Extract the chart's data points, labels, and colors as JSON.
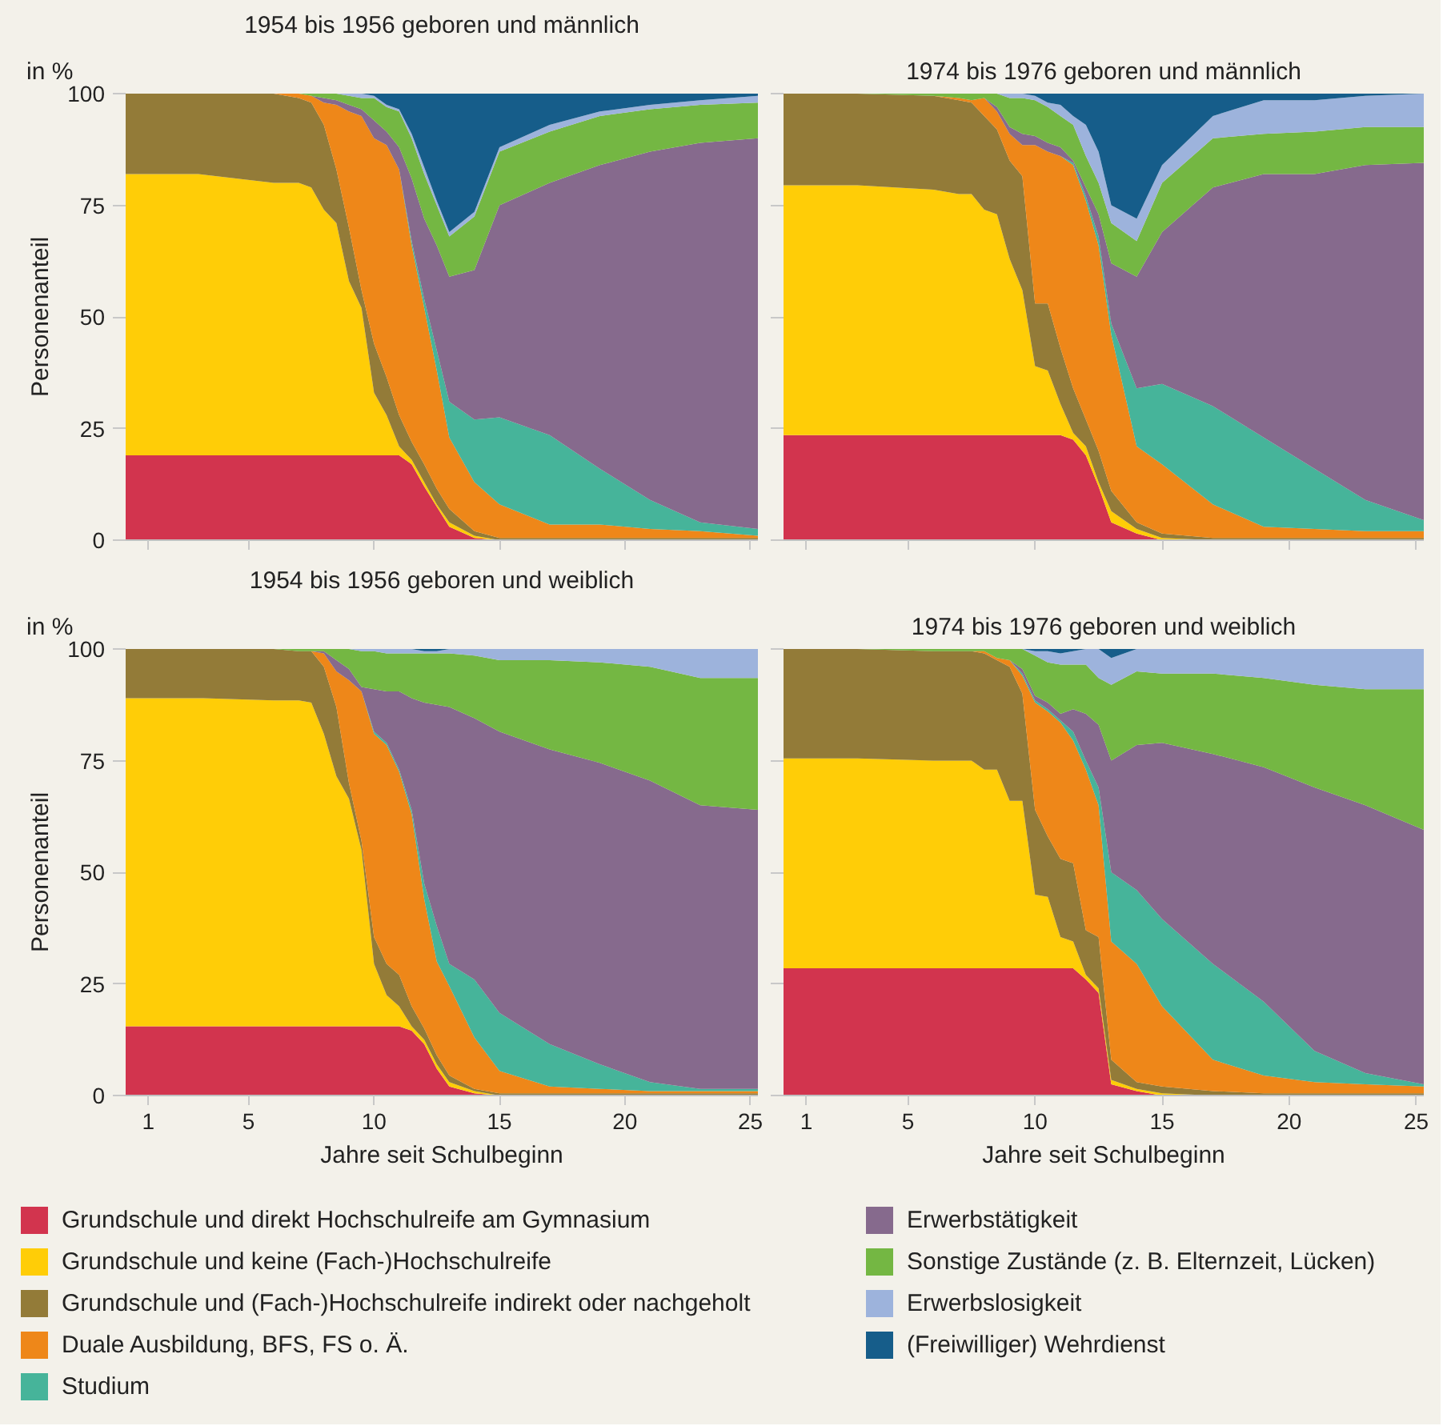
{
  "chart_data": [
    {
      "type": "area",
      "stacked": true,
      "title": "1954 bis 1956 geboren und männlich",
      "ylabel": "Personenanteil",
      "annotations": [
        "in %"
      ],
      "xlim": [
        0.1,
        25.3
      ],
      "ylim": [
        0,
        100
      ],
      "xticks": [
        1,
        5,
        10,
        15,
        20,
        25
      ],
      "yticks": [
        0,
        25,
        50,
        75,
        100
      ],
      "grid": "y",
      "tick_labels": "y",
      "x": [
        0.1,
        3,
        6,
        7,
        7.5,
        8,
        8.5,
        9,
        9.5,
        10,
        10.5,
        11,
        11.5,
        12,
        12.5,
        13,
        14,
        15,
        17,
        19,
        21,
        23,
        25.3
      ],
      "series": [
        {
          "color": "#d2344e",
          "values": [
            19,
            19,
            19,
            19,
            19,
            19,
            19,
            19,
            19,
            19,
            19,
            19,
            17,
            12,
            7.5,
            3,
            0.5,
            0,
            0,
            0,
            0,
            0,
            0
          ]
        },
        {
          "color": "#ffcd07",
          "values": [
            63,
            63,
            61,
            61,
            60,
            55,
            52,
            39,
            33,
            14,
            9,
            2,
            1,
            1,
            0.5,
            1,
            0.5,
            0,
            0,
            0,
            0,
            0,
            0
          ]
        },
        {
          "color": "#937b38",
          "values": [
            18,
            18,
            20,
            19,
            19,
            19,
            12,
            12,
            4,
            11,
            8.5,
            7,
            4,
            4,
            3.5,
            3,
            1,
            0.5,
            0.5,
            0.5,
            0.5,
            0.5,
            0.5
          ]
        },
        {
          "color": "#ee8719",
          "values": [
            0,
            0,
            0,
            1,
            1.5,
            5,
            14.5,
            26,
            39,
            46,
            52,
            55,
            44,
            35,
            26.5,
            16,
            11,
            7.5,
            3,
            3,
            2,
            1.5,
            0.5
          ]
        },
        {
          "color": "#46b49a",
          "values": [
            0,
            0,
            0,
            0,
            0,
            0,
            0,
            0,
            0,
            0,
            0,
            0,
            1,
            2,
            4.5,
            8,
            14,
            19.5,
            20,
            12.5,
            6.5,
            2,
            1.5
          ]
        },
        {
          "color": "#866a8d",
          "values": [
            0,
            0,
            0,
            0,
            0,
            1,
            1,
            1.5,
            1.5,
            4,
            3,
            5,
            14,
            18,
            23.5,
            28,
            33.5,
            47.5,
            56.5,
            68,
            78,
            85,
            87.5
          ]
        },
        {
          "color": "#74b743",
          "values": [
            0,
            0,
            0,
            0,
            0.5,
            1,
            1.5,
            2,
            2.5,
            5,
            5.5,
            8,
            9,
            10,
            9,
            9,
            12,
            12,
            11.5,
            11,
            9.5,
            8.5,
            8
          ]
        },
        {
          "color": "#9db3dc",
          "values": [
            0,
            0,
            0,
            0,
            0,
            0,
            0,
            0.5,
            1,
            0.5,
            0.5,
            0.5,
            1,
            1.5,
            1,
            1,
            1,
            1,
            1.5,
            1,
            1,
            1,
            1.5
          ]
        },
        {
          "color": "#165d8a",
          "values": [
            0,
            0,
            0,
            0,
            0,
            0,
            0,
            0,
            0,
            0.5,
            2.5,
            3.5,
            9,
            16.5,
            24,
            31,
            26.5,
            12,
            7,
            4,
            2.5,
            1.5,
            0.5
          ]
        }
      ]
    },
    {
      "type": "area",
      "stacked": true,
      "title": "1974 bis 1976 geboren und männlich",
      "xlim": [
        0.1,
        25.3
      ],
      "ylim": [
        0,
        100
      ],
      "xticks": [
        1,
        5,
        10,
        15,
        20,
        25
      ],
      "yticks": [
        0,
        25,
        50,
        75,
        100
      ],
      "grid": "y",
      "tick_labels": false,
      "x": [
        0.1,
        3,
        6,
        7,
        7.5,
        8,
        8.5,
        9,
        9.5,
        10,
        10.5,
        11,
        11.5,
        12,
        12.5,
        13,
        14,
        15,
        17,
        19,
        21,
        23,
        25.3
      ],
      "series": [
        {
          "color": "#d2344e",
          "values": [
            23.5,
            23.5,
            23.5,
            23.5,
            23.5,
            23.5,
            23.5,
            23.5,
            23.5,
            23.5,
            23.5,
            23.5,
            22.5,
            19,
            12,
            4,
            1.5,
            0,
            0,
            0,
            0,
            0,
            0
          ]
        },
        {
          "color": "#ffcd07",
          "values": [
            56,
            56,
            55,
            54,
            54,
            50.5,
            49.5,
            39.5,
            32.5,
            15.5,
            14.5,
            7,
            1.5,
            2,
            1,
            2.5,
            1,
            0.5,
            0,
            0,
            0,
            0,
            0
          ]
        },
        {
          "color": "#937b38",
          "values": [
            20.5,
            20.5,
            21,
            21,
            20.5,
            21,
            19,
            22,
            25.5,
            14,
            15,
            12.5,
            10,
            6,
            7,
            4.5,
            1.5,
            1,
            0.5,
            0.5,
            0.5,
            0.5,
            0.5
          ]
        },
        {
          "color": "#ee8719",
          "values": [
            0,
            0,
            0,
            0.5,
            0.5,
            4,
            4,
            6,
            7,
            35.5,
            34,
            43,
            50,
            49,
            46,
            35,
            17,
            15.5,
            7.5,
            2.5,
            2,
            1.5,
            1.5
          ]
        },
        {
          "color": "#46b49a",
          "values": [
            0,
            0,
            0,
            0,
            0,
            0,
            0,
            0,
            0,
            0,
            0,
            0,
            0.5,
            1,
            2,
            2.5,
            13,
            18,
            22,
            20,
            13.5,
            7,
            2.5
          ]
        },
        {
          "color": "#866a8d",
          "values": [
            0,
            0,
            0,
            0,
            0,
            0,
            1,
            1.5,
            2.5,
            2,
            2,
            2,
            0.5,
            2,
            5,
            13.5,
            25,
            34,
            49,
            59,
            66,
            75,
            80
          ]
        },
        {
          "color": "#74b743",
          "values": [
            0,
            0,
            0.5,
            1,
            1.5,
            1,
            3,
            6.5,
            8,
            8,
            8,
            7,
            8,
            7,
            7,
            9,
            8,
            11,
            11,
            9,
            9.5,
            8.5,
            8
          ]
        },
        {
          "color": "#9db3dc",
          "values": [
            0,
            0,
            0,
            0,
            0,
            0,
            0,
            1,
            1,
            1,
            1,
            2.5,
            2,
            7,
            7,
            4,
            5,
            4,
            5,
            7.5,
            7,
            7,
            7.5
          ]
        },
        {
          "color": "#165d8a",
          "values": [
            0,
            0,
            0,
            0,
            0,
            0,
            0,
            0,
            0,
            0.5,
            2,
            2.5,
            5,
            7,
            13,
            25,
            28,
            16,
            5,
            1.5,
            1.5,
            0.5,
            0
          ]
        }
      ]
    },
    {
      "type": "area",
      "stacked": true,
      "title": "1954 bis 1956 geboren und weiblich",
      "xlabel": "Jahre seit Schulbeginn",
      "ylabel": "Personenanteil",
      "annotations": [
        "in %"
      ],
      "xlim": [
        0.1,
        25.3
      ],
      "ylim": [
        0,
        100
      ],
      "xticks": [
        1,
        5,
        10,
        15,
        20,
        25
      ],
      "yticks": [
        0,
        25,
        50,
        75,
        100
      ],
      "grid": "y",
      "x": [
        0.1,
        3,
        6,
        7,
        7.5,
        8,
        8.5,
        9,
        9.5,
        10,
        10.5,
        11,
        11.5,
        12,
        12.5,
        13,
        14,
        15,
        17,
        19,
        21,
        23,
        25.3
      ],
      "series": [
        {
          "color": "#d2344e",
          "values": [
            15.5,
            15.5,
            15.5,
            15.5,
            15.5,
            15.5,
            15.5,
            15.5,
            15.5,
            15.5,
            15.5,
            15.5,
            14.5,
            11.5,
            6,
            2,
            0.5,
            0,
            0,
            0,
            0,
            0,
            0
          ]
        },
        {
          "color": "#ffcd07",
          "values": [
            73.5,
            73.5,
            73,
            73,
            72.5,
            65.5,
            56,
            51,
            39.5,
            14,
            7,
            4.5,
            1,
            1,
            1,
            1,
            0.5,
            0,
            0,
            0,
            0,
            0,
            0
          ]
        },
        {
          "color": "#937b38",
          "values": [
            11,
            11,
            11.5,
            11,
            11.5,
            15,
            15.5,
            3.5,
            2,
            6,
            7,
            7,
            4.5,
            2.5,
            2,
            1.5,
            0.5,
            0.5,
            0.5,
            0.5,
            0.5,
            0.5,
            0.5
          ]
        },
        {
          "color": "#ee8719",
          "values": [
            0,
            0,
            0,
            0,
            0,
            3,
            8,
            23,
            33.5,
            45.5,
            49,
            45.5,
            43,
            29,
            21,
            20,
            11.5,
            5,
            1.5,
            1,
            0.5,
            0.5,
            0.5
          ]
        },
        {
          "color": "#46b49a",
          "values": [
            0,
            0,
            0,
            0,
            0,
            0,
            0,
            0,
            0,
            0.5,
            0.5,
            0.5,
            1,
            3.5,
            8,
            5,
            13,
            13,
            9.5,
            5.5,
            2,
            0.5,
            0.5
          ]
        },
        {
          "color": "#866a8d",
          "values": [
            0,
            0,
            0,
            0,
            0,
            0.5,
            2.5,
            2.5,
            1,
            9.5,
            11.5,
            17.5,
            25,
            40.5,
            49.5,
            57.5,
            58.5,
            63,
            66,
            67.5,
            67.5,
            63.5,
            62.5
          ]
        },
        {
          "color": "#74b743",
          "values": [
            0,
            0,
            0,
            0.5,
            0.5,
            0.5,
            2.5,
            4.5,
            8,
            8.5,
            8.5,
            8.5,
            10,
            11,
            11.5,
            12,
            14,
            16,
            20,
            22.5,
            25.5,
            28.5,
            29.5
          ]
        },
        {
          "color": "#9db3dc",
          "values": [
            0,
            0,
            0,
            0,
            0,
            0,
            0,
            0,
            0.5,
            0.5,
            1,
            1,
            1,
            0.5,
            0.5,
            1,
            1.5,
            2.5,
            2.5,
            3,
            4,
            6.5,
            6.5
          ]
        },
        {
          "color": "#165d8a",
          "values": [
            0,
            0,
            0,
            0,
            0,
            0,
            0,
            0,
            0,
            0,
            0,
            0,
            0,
            0.5,
            0.5,
            0,
            0,
            0,
            0,
            0,
            0,
            0,
            0
          ]
        }
      ]
    },
    {
      "type": "area",
      "stacked": true,
      "title": "1974 bis 1976 geboren und weiblich",
      "xlabel": "Jahre seit Schulbeginn",
      "xlim": [
        0.1,
        25.3
      ],
      "ylim": [
        0,
        100
      ],
      "xticks": [
        1,
        5,
        10,
        15,
        20,
        25
      ],
      "yticks": [
        0,
        25,
        50,
        75,
        100
      ],
      "grid": "y",
      "tick_labels": "x",
      "legend": "bottom",
      "x": [
        0.1,
        3,
        6,
        7,
        7.5,
        8,
        8.5,
        9,
        9.5,
        10,
        10.5,
        11,
        11.5,
        12,
        12.5,
        13,
        14,
        15,
        17,
        19,
        21,
        23,
        25.3
      ],
      "series": [
        {
          "name": "Grundschule und direkt Hochschulreife am Gymnasium",
          "color": "#d2344e",
          "values": [
            28.5,
            28.5,
            28.5,
            28.5,
            28.5,
            28.5,
            28.5,
            28.5,
            28.5,
            28.5,
            28.5,
            28.5,
            28.5,
            26,
            23,
            2.5,
            1,
            0,
            0,
            0,
            0,
            0,
            0
          ]
        },
        {
          "name": "Grundschule und keine (Fach-)Hochschulreife",
          "color": "#ffcd07",
          "values": [
            47,
            47,
            46.5,
            46.5,
            46.5,
            44.5,
            44.5,
            37.5,
            37.5,
            16.5,
            16,
            7,
            6,
            1,
            1,
            1,
            0.5,
            0.5,
            0,
            0,
            0,
            0,
            0
          ]
        },
        {
          "name": "Grundschule und (Fach-)Hochschulreife indirekt oder nachgeholt",
          "color": "#937b38",
          "values": [
            24.5,
            24.5,
            24.5,
            24.5,
            24.5,
            26,
            24.5,
            30,
            24,
            19,
            13.5,
            17.5,
            17.5,
            10,
            11.5,
            4.5,
            1.5,
            1.5,
            1,
            0.5,
            0.5,
            0.5,
            0.5
          ]
        },
        {
          "name": "Duale Ausbildung, BFS, FS o. Ä.",
          "color": "#ee8719",
          "values": [
            0,
            0,
            0,
            0,
            0,
            0.5,
            0.5,
            1.5,
            4,
            24,
            28,
            30.5,
            27.5,
            36,
            29.5,
            26.5,
            26.5,
            18,
            7,
            4,
            2.5,
            2,
            1.5
          ]
        },
        {
          "name": "Studium",
          "color": "#46b49a",
          "values": [
            0,
            0,
            0,
            0,
            0,
            0,
            0,
            0,
            0.5,
            0.5,
            0.5,
            0.5,
            2,
            2,
            4,
            15.5,
            16.5,
            19.5,
            21.5,
            16.5,
            7,
            2.5,
            0.5
          ]
        },
        {
          "name": "Erwerbstätigkeit",
          "color": "#866a8d",
          "values": [
            0,
            0,
            0,
            0,
            0,
            0,
            0,
            0,
            1,
            1,
            1.5,
            1.5,
            5,
            10.5,
            14,
            25,
            32.5,
            39.5,
            47,
            52.5,
            59,
            60,
            57
          ]
        },
        {
          "name": "Sonstige Zustände (z. B. Elternzeit, Lücken)",
          "color": "#74b743",
          "values": [
            0,
            0,
            0.5,
            0.5,
            0.5,
            0.5,
            2,
            2.5,
            4.5,
            9,
            9,
            11,
            10,
            11,
            10.5,
            17,
            16.5,
            15.5,
            18,
            20,
            23,
            26,
            31.5
          ]
        },
        {
          "name": "Erwerbslosigkeit",
          "color": "#9db3dc",
          "values": [
            0,
            0,
            0,
            0,
            0,
            0,
            0,
            0,
            0,
            1,
            2.5,
            2.5,
            3,
            3.5,
            6.5,
            6,
            5,
            5.5,
            5.5,
            6.5,
            8,
            9,
            9
          ]
        },
        {
          "name": "(Freiwilliger) Wehrdienst",
          "color": "#165d8a",
          "values": [
            0,
            0,
            0,
            0,
            0,
            0,
            0,
            0,
            0,
            0.5,
            0.5,
            1,
            0.5,
            0,
            0,
            2,
            0,
            0,
            0,
            0,
            0,
            0,
            0
          ]
        }
      ]
    }
  ]
}
